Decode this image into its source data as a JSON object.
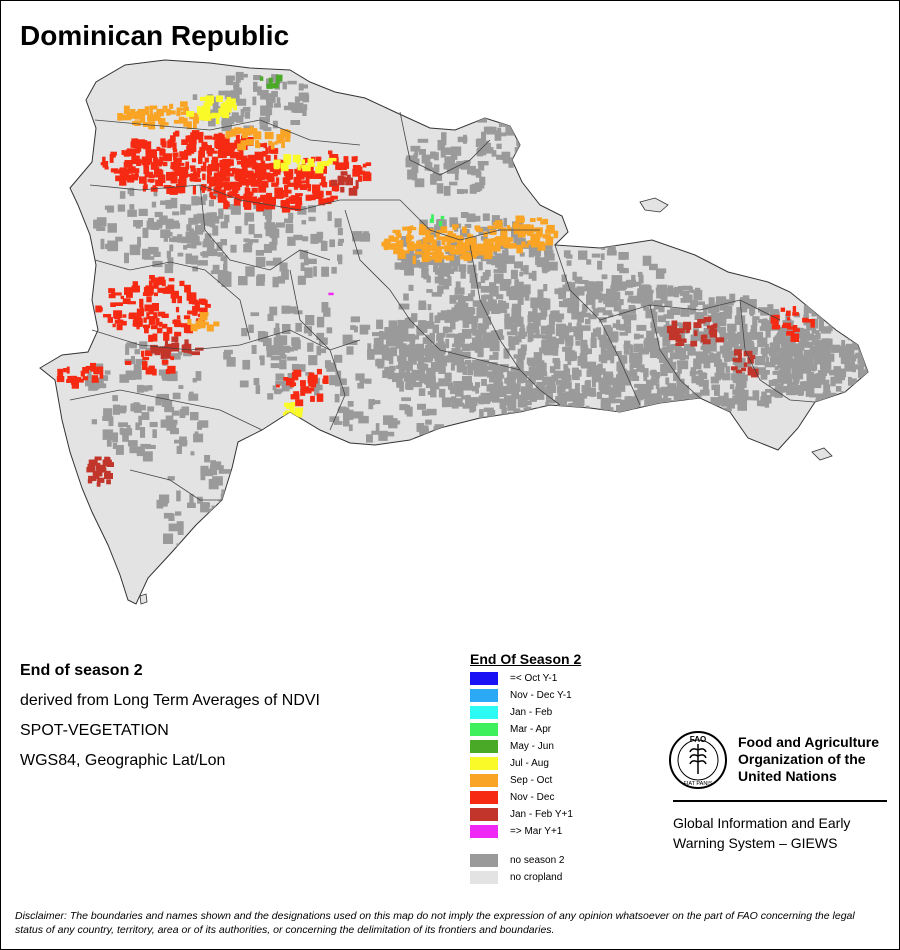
{
  "map": {
    "title": "Dominican Republic"
  },
  "info": {
    "line1": "End of season 2",
    "line2": "derived from Long Term Averages of NDVI",
    "line3": "SPOT-VEGETATION",
    "line4": "WGS84, Geographic Lat/Lon"
  },
  "legend": {
    "title": "End Of Season 2",
    "items": [
      {
        "label": "=< Oct Y-1",
        "color": "#1a12f5"
      },
      {
        "label": "Nov - Dec Y-1",
        "color": "#2ba9f5"
      },
      {
        "label": "Jan - Feb",
        "color": "#2cfaf5"
      },
      {
        "label": "Mar - Apr",
        "color": "#3ef05c"
      },
      {
        "label": "May - Jun",
        "color": "#4aaa28"
      },
      {
        "label": "Jul - Aug",
        "color": "#fafa28"
      },
      {
        "label": "Sep - Oct",
        "color": "#f9a424"
      },
      {
        "label": "Nov - Dec",
        "color": "#f62a12"
      },
      {
        "label": "Jan - Feb Y+1",
        "color": "#c2352a"
      },
      {
        "label": "=> Mar Y+1",
        "color": "#f028f5"
      }
    ],
    "extra": [
      {
        "label": "no season 2",
        "color": "#9a9a9a"
      },
      {
        "label": "no cropland",
        "color": "#e3e3e3"
      }
    ]
  },
  "org": {
    "logo_text": "FAO",
    "logo_motto": "FIAT PANIS",
    "name_line1": "Food and Agriculture",
    "name_line2": "Organization of the",
    "name_line3": "United Nations",
    "giews_line1": "Global Information and Early",
    "giews_line2": "Warning System – GIEWS"
  },
  "disclaimer": "Disclaimer: The boundaries and names shown and the designations used on this map do not imply the expression of any opinion whatsoever on the part of FAO concerning the legal status of any country, territory, area or of its authorities, or concerning the delimitation of its frontiers and boundaries."
}
